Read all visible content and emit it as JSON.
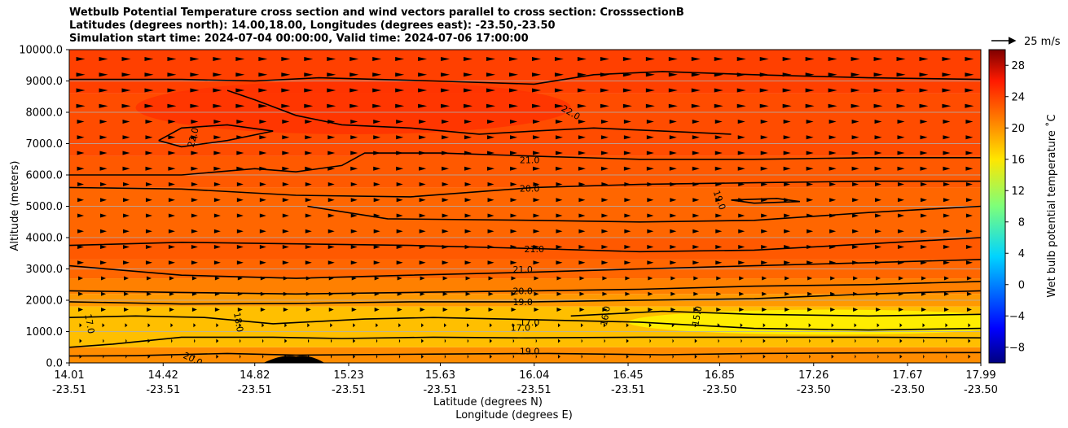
{
  "title_lines": [
    "Wetbulb Potential Temperature cross section and wind vectors parallel to cross section: CrosssectionB",
    "Latitudes (degrees north): 14.00,18.00, Longitudes (degrees east): -23.50,-23.50",
    "Simulation start time: 2024-07-04 00:00:00, Valid time: 2024-07-06 17:00:00"
  ],
  "chart_data": {
    "type": "contourf",
    "ylabel": "Altitude (meters)",
    "xlabel_lines": [
      "Latitude (degrees N)",
      "Longitude (degrees E)"
    ],
    "ylim": [
      0,
      10000
    ],
    "yticks": [
      {
        "value": 0,
        "label": "0.0"
      },
      {
        "value": 1000,
        "label": "1000.0"
      },
      {
        "value": 2000,
        "label": "2000.0"
      },
      {
        "value": 3000,
        "label": "3000.0"
      },
      {
        "value": 4000,
        "label": "4000.0"
      },
      {
        "value": 5000,
        "label": "5000.0"
      },
      {
        "value": 6000,
        "label": "6000.0"
      },
      {
        "value": 7000,
        "label": "7000.0"
      },
      {
        "value": 8000,
        "label": "8000.0"
      },
      {
        "value": 9000,
        "label": "9000.0"
      },
      {
        "value": 10000,
        "label": "10000.0"
      }
    ],
    "xlim": [
      14.01,
      17.99
    ],
    "xticks": [
      {
        "value": 14.01,
        "lat": "14.01",
        "lon": "-23.51"
      },
      {
        "value": 14.42,
        "lat": "14.42",
        "lon": "-23.51"
      },
      {
        "value": 14.82,
        "lat": "14.82",
        "lon": "-23.51"
      },
      {
        "value": 15.23,
        "lat": "15.23",
        "lon": "-23.51"
      },
      {
        "value": 15.63,
        "lat": "15.63",
        "lon": "-23.51"
      },
      {
        "value": 16.04,
        "lat": "16.04",
        "lon": "-23.51"
      },
      {
        "value": 16.45,
        "lat": "16.45",
        "lon": "-23.51"
      },
      {
        "value": 16.85,
        "lat": "16.85",
        "lon": "-23.50"
      },
      {
        "value": 17.26,
        "lat": "17.26",
        "lon": "-23.50"
      },
      {
        "value": 17.67,
        "lat": "17.67",
        "lon": "-23.50"
      },
      {
        "value": 17.99,
        "lat": "17.99",
        "lon": "-23.50"
      }
    ],
    "grid": "horizontal",
    "colorbar": {
      "label": "Wet bulb potential temperature ˚C",
      "range": [
        -10,
        30
      ],
      "colormap": "jet",
      "ticks": [
        {
          "value": 28,
          "label": "28"
        },
        {
          "value": 24,
          "label": "24"
        },
        {
          "value": 20,
          "label": "20"
        },
        {
          "value": 16,
          "label": "16"
        },
        {
          "value": 12,
          "label": "12"
        },
        {
          "value": 8,
          "label": "8"
        },
        {
          "value": 4,
          "label": "4"
        },
        {
          "value": 0,
          "label": "0"
        },
        {
          "value": -4,
          "label": "−4"
        },
        {
          "value": -8,
          "label": "−8"
        }
      ]
    },
    "quiver_key": {
      "label": "25 m/s",
      "speed": 25
    },
    "temperature_bands": [
      {
        "low": 0,
        "high": 500,
        "temp": 19.5
      },
      {
        "low": 500,
        "high": 1800,
        "temp": 17.5
      },
      {
        "low": 1800,
        "high": 2200,
        "temp": 19.0
      },
      {
        "low": 2200,
        "high": 2700,
        "temp": 20.0
      },
      {
        "low": 2700,
        "high": 3300,
        "temp": 21.0
      },
      {
        "low": 3300,
        "high": 4000,
        "temp": 21.5
      },
      {
        "low": 4000,
        "high": 5600,
        "temp": 21.0
      },
      {
        "low": 5600,
        "high": 6600,
        "temp": 21.5
      },
      {
        "low": 6600,
        "high": 8600,
        "temp": 22.0
      },
      {
        "low": 8600,
        "high": 10000,
        "temp": 22.5
      }
    ],
    "warm_pocket": {
      "temp": 23.0,
      "lat_range": [
        14.3,
        16.2
      ],
      "alt_range": [
        7300,
        9000
      ]
    },
    "cool_core": {
      "temp": 15.5,
      "lat_range": [
        16.45,
        17.99
      ],
      "alt_range": [
        900,
        1700
      ]
    },
    "terrain_peak": {
      "lat": 15.0,
      "height": 200
    },
    "contour_lines": [
      {
        "level": "19.0",
        "points": [
          [
            14.01,
            220
          ],
          [
            14.3,
            230
          ],
          [
            14.7,
            300
          ],
          [
            15.0,
            250
          ],
          [
            15.6,
            280
          ],
          [
            16.1,
            300
          ],
          [
            16.6,
            260
          ],
          [
            17.0,
            300
          ],
          [
            17.5,
            320
          ],
          [
            17.99,
            330
          ]
        ]
      },
      {
        "level": "17.0",
        "points": [
          [
            14.01,
            500
          ],
          [
            14.2,
            600
          ],
          [
            14.5,
            820
          ],
          [
            14.9,
            820
          ],
          [
            15.2,
            780
          ],
          [
            15.6,
            820
          ],
          [
            16.0,
            800
          ],
          [
            16.5,
            820
          ],
          [
            17.0,
            820
          ],
          [
            17.5,
            820
          ],
          [
            17.99,
            800
          ]
        ]
      },
      {
        "level": "17.0",
        "points": [
          [
            14.01,
            1450
          ],
          [
            14.3,
            1500
          ],
          [
            14.6,
            1450
          ],
          [
            14.9,
            1250
          ],
          [
            15.3,
            1400
          ],
          [
            15.6,
            1450
          ],
          [
            16.04,
            1380
          ],
          [
            16.5,
            1300
          ],
          [
            17.0,
            1100
          ],
          [
            17.5,
            1050
          ],
          [
            17.99,
            1100
          ]
        ]
      },
      {
        "level": "16.0",
        "points": [
          [
            16.2,
            1500
          ],
          [
            16.6,
            1650
          ],
          [
            17.0,
            1550
          ],
          [
            17.5,
            1500
          ],
          [
            17.99,
            1550
          ]
        ]
      },
      {
        "level": "19.0",
        "points": [
          [
            14.01,
            1950
          ],
          [
            14.5,
            1880
          ],
          [
            15.0,
            1900
          ],
          [
            15.5,
            1950
          ],
          [
            16.04,
            1950
          ],
          [
            16.5,
            2000
          ],
          [
            17.0,
            2050
          ],
          [
            17.5,
            2200
          ],
          [
            17.99,
            2300
          ]
        ]
      },
      {
        "level": "20.0",
        "points": [
          [
            14.01,
            2300
          ],
          [
            14.5,
            2250
          ],
          [
            15.0,
            2200
          ],
          [
            15.5,
            2250
          ],
          [
            16.04,
            2300
          ],
          [
            16.5,
            2350
          ],
          [
            17.0,
            2450
          ],
          [
            17.5,
            2500
          ],
          [
            17.99,
            2600
          ]
        ]
      },
      {
        "level": "21.0",
        "points": [
          [
            14.01,
            3100
          ],
          [
            14.5,
            2800
          ],
          [
            15.0,
            2700
          ],
          [
            15.5,
            2800
          ],
          [
            16.04,
            2900
          ],
          [
            16.5,
            3000
          ],
          [
            17.0,
            3100
          ],
          [
            17.5,
            3200
          ],
          [
            17.99,
            3300
          ]
        ]
      },
      {
        "level": "21.0",
        "points": [
          [
            14.01,
            3750
          ],
          [
            14.5,
            3850
          ],
          [
            15.0,
            3800
          ],
          [
            15.5,
            3750
          ],
          [
            16.04,
            3650
          ],
          [
            16.5,
            3550
          ],
          [
            17.0,
            3600
          ],
          [
            17.5,
            3800
          ],
          [
            17.99,
            4000
          ]
        ]
      },
      {
        "level": "20.0",
        "points": [
          [
            15.05,
            5000
          ],
          [
            15.4,
            4600
          ],
          [
            16.04,
            4550
          ],
          [
            16.5,
            4500
          ],
          [
            17.0,
            4550
          ],
          [
            17.5,
            4800
          ],
          [
            17.99,
            5000
          ]
        ]
      },
      {
        "level": "20.0",
        "points": [
          [
            14.01,
            5600
          ],
          [
            14.5,
            5550
          ],
          [
            15.0,
            5350
          ],
          [
            15.5,
            5300
          ],
          [
            16.04,
            5600
          ],
          [
            16.5,
            5700
          ],
          [
            17.0,
            5750
          ],
          [
            17.5,
            5800
          ],
          [
            17.99,
            5800
          ]
        ]
      },
      {
        "level": "21.0",
        "points": [
          [
            14.01,
            6000
          ],
          [
            14.5,
            6000
          ],
          [
            14.82,
            6200
          ],
          [
            15.0,
            6100
          ],
          [
            15.2,
            6300
          ],
          [
            15.3,
            6700
          ],
          [
            15.63,
            6700
          ],
          [
            16.04,
            6600
          ],
          [
            16.5,
            6500
          ],
          [
            17.0,
            6500
          ],
          [
            17.5,
            6550
          ],
          [
            17.99,
            6550
          ]
        ]
      },
      {
        "level": "22.0",
        "points": [
          [
            14.01,
            9050
          ],
          [
            14.5,
            9050
          ],
          [
            14.82,
            9000
          ],
          [
            15.1,
            9100
          ],
          [
            15.6,
            9000
          ],
          [
            16.04,
            8900
          ],
          [
            16.3,
            9200
          ],
          [
            16.6,
            9300
          ],
          [
            17.0,
            9200
          ],
          [
            17.5,
            9100
          ],
          [
            17.99,
            9050
          ]
        ]
      },
      {
        "level": "22.0",
        "points": [
          [
            14.7,
            8700
          ],
          [
            14.82,
            8400
          ],
          [
            15.0,
            7900
          ],
          [
            15.2,
            7600
          ],
          [
            15.5,
            7500
          ],
          [
            15.8,
            7300
          ],
          [
            16.04,
            7400
          ],
          [
            16.3,
            7500
          ],
          [
            16.6,
            7400
          ],
          [
            16.9,
            7300
          ]
        ]
      },
      {
        "level": "22.0",
        "points": [
          [
            14.4,
            7100
          ],
          [
            14.5,
            7500
          ],
          [
            14.7,
            7600
          ],
          [
            14.9,
            7400
          ],
          [
            14.7,
            7100
          ],
          [
            14.5,
            6900
          ],
          [
            14.4,
            7100
          ]
        ]
      },
      {
        "level": "19.0",
        "points": [
          [
            16.9,
            5200
          ],
          [
            17.1,
            5250
          ],
          [
            17.2,
            5150
          ],
          [
            17.0,
            5100
          ],
          [
            16.9,
            5200
          ]
        ]
      }
    ],
    "contour_labels": [
      {
        "text": "22.0",
        "lat": 16.2,
        "alt": 8000,
        "rotate": 30
      },
      {
        "text": "22.0",
        "lat": 14.55,
        "alt": 7200,
        "rotate": -75
      },
      {
        "text": "21.0",
        "lat": 16.02,
        "alt": 6480,
        "rotate": 0
      },
      {
        "text": "20.0",
        "lat": 16.02,
        "alt": 5570,
        "rotate": 0
      },
      {
        "text": "19.0",
        "lat": 16.85,
        "alt": 5200,
        "rotate": 70
      },
      {
        "text": "21.0",
        "lat": 16.04,
        "alt": 3630,
        "rotate": 0
      },
      {
        "text": "21.0",
        "lat": 15.99,
        "alt": 2990,
        "rotate": 0
      },
      {
        "text": "20.0",
        "lat": 15.99,
        "alt": 2300,
        "rotate": 0
      },
      {
        "text": "19.0",
        "lat": 15.99,
        "alt": 1950,
        "rotate": 0
      },
      {
        "text": "17.0",
        "lat": 16.02,
        "alt": 1300,
        "rotate": 0
      },
      {
        "text": "17.0",
        "lat": 15.98,
        "alt": 1130,
        "rotate": 0
      },
      {
        "text": "16.0",
        "lat": 16.35,
        "alt": 1500,
        "rotate": -80
      },
      {
        "text": "15.0",
        "lat": 16.75,
        "alt": 1500,
        "rotate": -80
      },
      {
        "text": "17.0",
        "lat": 14.1,
        "alt": 1250,
        "rotate": 80
      },
      {
        "text": "18.0",
        "lat": 14.75,
        "alt": 1300,
        "rotate": 80
      },
      {
        "text": "20.0",
        "lat": 14.55,
        "alt": 130,
        "rotate": 25
      },
      {
        "text": "19.0",
        "lat": 16.02,
        "alt": 380,
        "rotate": 0
      }
    ]
  }
}
